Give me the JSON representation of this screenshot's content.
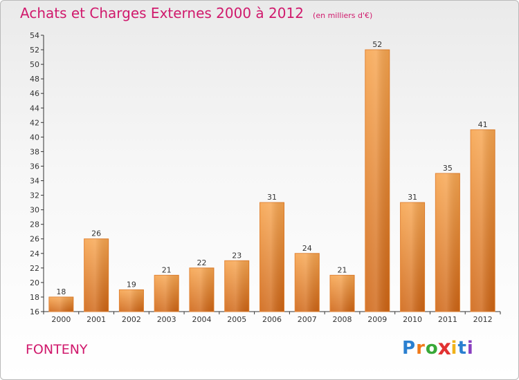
{
  "title": "Achats et Charges Externes 2000 à 2012",
  "subtitle": "(en milliers d'€)",
  "commune": "FONTENY",
  "logo": {
    "letters": [
      "P",
      "r",
      "o",
      "x",
      "i",
      "t",
      "i"
    ],
    "colors": [
      "#2a7fd0",
      "#f07a1a",
      "#38a838",
      "#e23232",
      "#f0b21a",
      "#2a7fd0",
      "#8a3fc0"
    ]
  },
  "colors": {
    "bar": "#f08a24",
    "axis": "#333333",
    "grid": "#d9d9d9",
    "title": "#d0196c"
  },
  "chart_data": {
    "type": "bar",
    "categories": [
      "2000",
      "2001",
      "2002",
      "2003",
      "2004",
      "2005",
      "2006",
      "2007",
      "2008",
      "2009",
      "2010",
      "2011",
      "2012"
    ],
    "values": [
      18,
      26,
      19,
      21,
      22,
      23,
      31,
      24,
      21,
      52,
      31,
      35,
      41
    ],
    "data_labels": [
      "18",
      "26",
      "19",
      "21",
      "22",
      "23",
      "31",
      "24",
      "21",
      "52",
      "31",
      "35",
      "41"
    ],
    "yticks": [
      "16",
      "18",
      "20",
      "22",
      "24",
      "26",
      "28",
      "30",
      "32",
      "34",
      "36",
      "38",
      "40",
      "42",
      "44",
      "46",
      "48",
      "50",
      "52",
      "54"
    ],
    "ylim": [
      16,
      54
    ],
    "xlabel": "",
    "ylabel": "",
    "grid": false,
    "legend": "none"
  }
}
